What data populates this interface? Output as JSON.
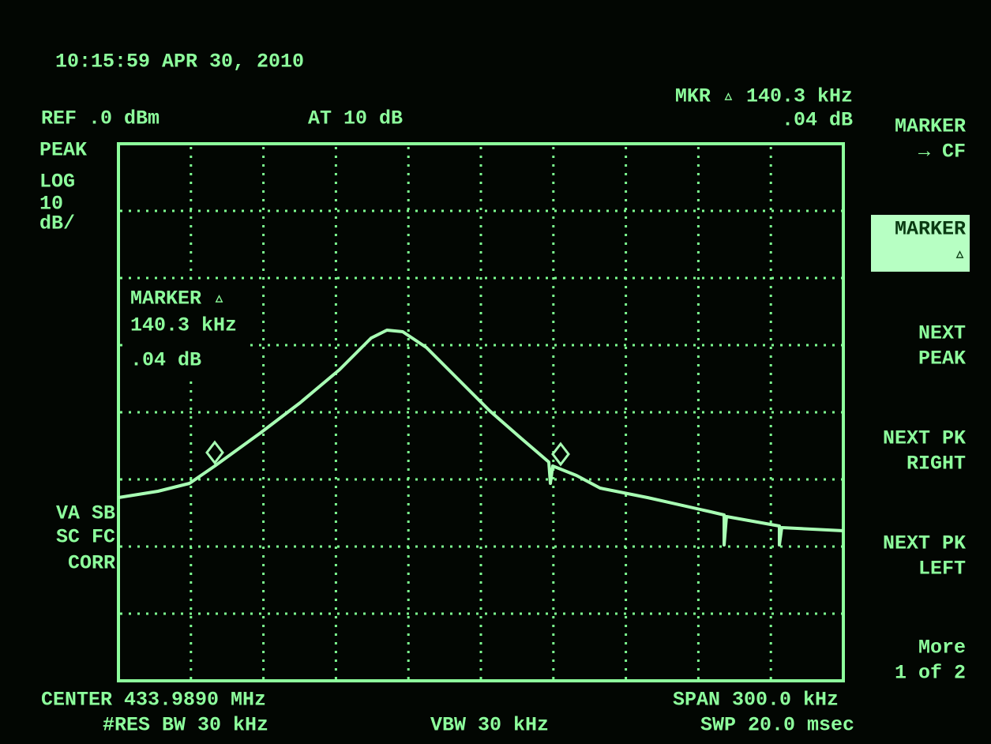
{
  "header": {
    "timestamp": "10:15:59 APR 30, 2010",
    "ref": "REF .0 dBm",
    "atten": "AT 10 dB",
    "marker_freq": "MKR ▵ 140.3 kHz",
    "marker_amp": ".04 dB"
  },
  "left_labels": [
    "PEAK",
    "LOG",
    "10",
    "dB/"
  ],
  "status_labels": [
    "VA SB",
    "SC FC",
    "CORR"
  ],
  "marker_box": [
    "MARKER ▵",
    "140.3 kHz",
    ".04 dB"
  ],
  "softkeys": [
    [
      "MARKER",
      "→ CF"
    ],
    [
      "MARKER",
      "▵"
    ],
    [
      "NEXT",
      "PEAK"
    ],
    [
      "NEXT PK",
      "RIGHT"
    ],
    [
      "NEXT PK",
      "LEFT"
    ],
    [
      "More",
      "1 of 2"
    ]
  ],
  "footer": {
    "center": "CENTER 433.9890 MHz",
    "rbw": "#RES BW 30 kHz",
    "vbw": "VBW 30 kHz",
    "span": "SPAN 300.0 kHz",
    "sweep": "SWP 20.0 msec"
  }
}
